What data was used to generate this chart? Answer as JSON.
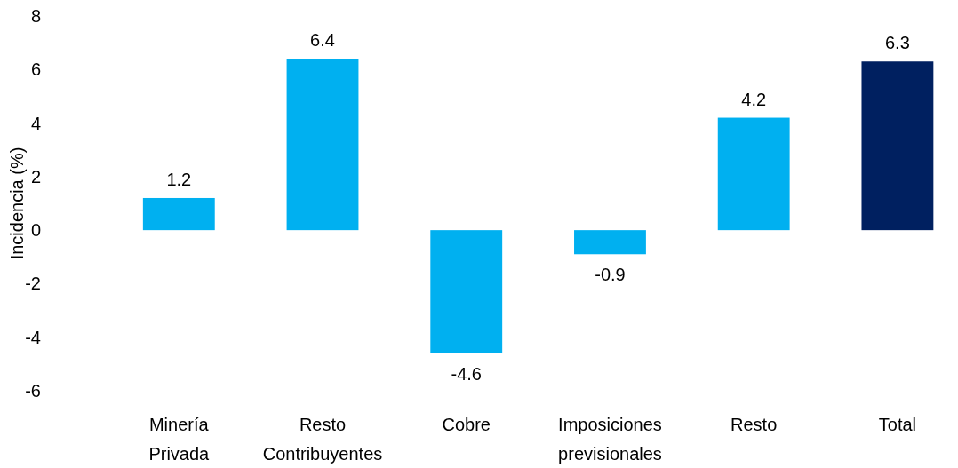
{
  "chart_data": {
    "type": "bar",
    "ylabel": "Incidencia (%)",
    "categories": [
      "Minería Privada",
      "Resto Contribuyentes",
      "Cobre",
      "Imposiciones previsionales",
      "Resto",
      "Total"
    ],
    "values": [
      1.2,
      6.4,
      -4.6,
      -0.9,
      4.2,
      6.3
    ],
    "colors": [
      "#00b0f0",
      "#00b0f0",
      "#00b0f0",
      "#00b0f0",
      "#00b0f0",
      "#002060"
    ],
    "ylim": [
      -6,
      8
    ],
    "yticks": [
      -6,
      -4,
      -2,
      0,
      2,
      4,
      6,
      8
    ],
    "grid": false,
    "data_labels": true
  }
}
